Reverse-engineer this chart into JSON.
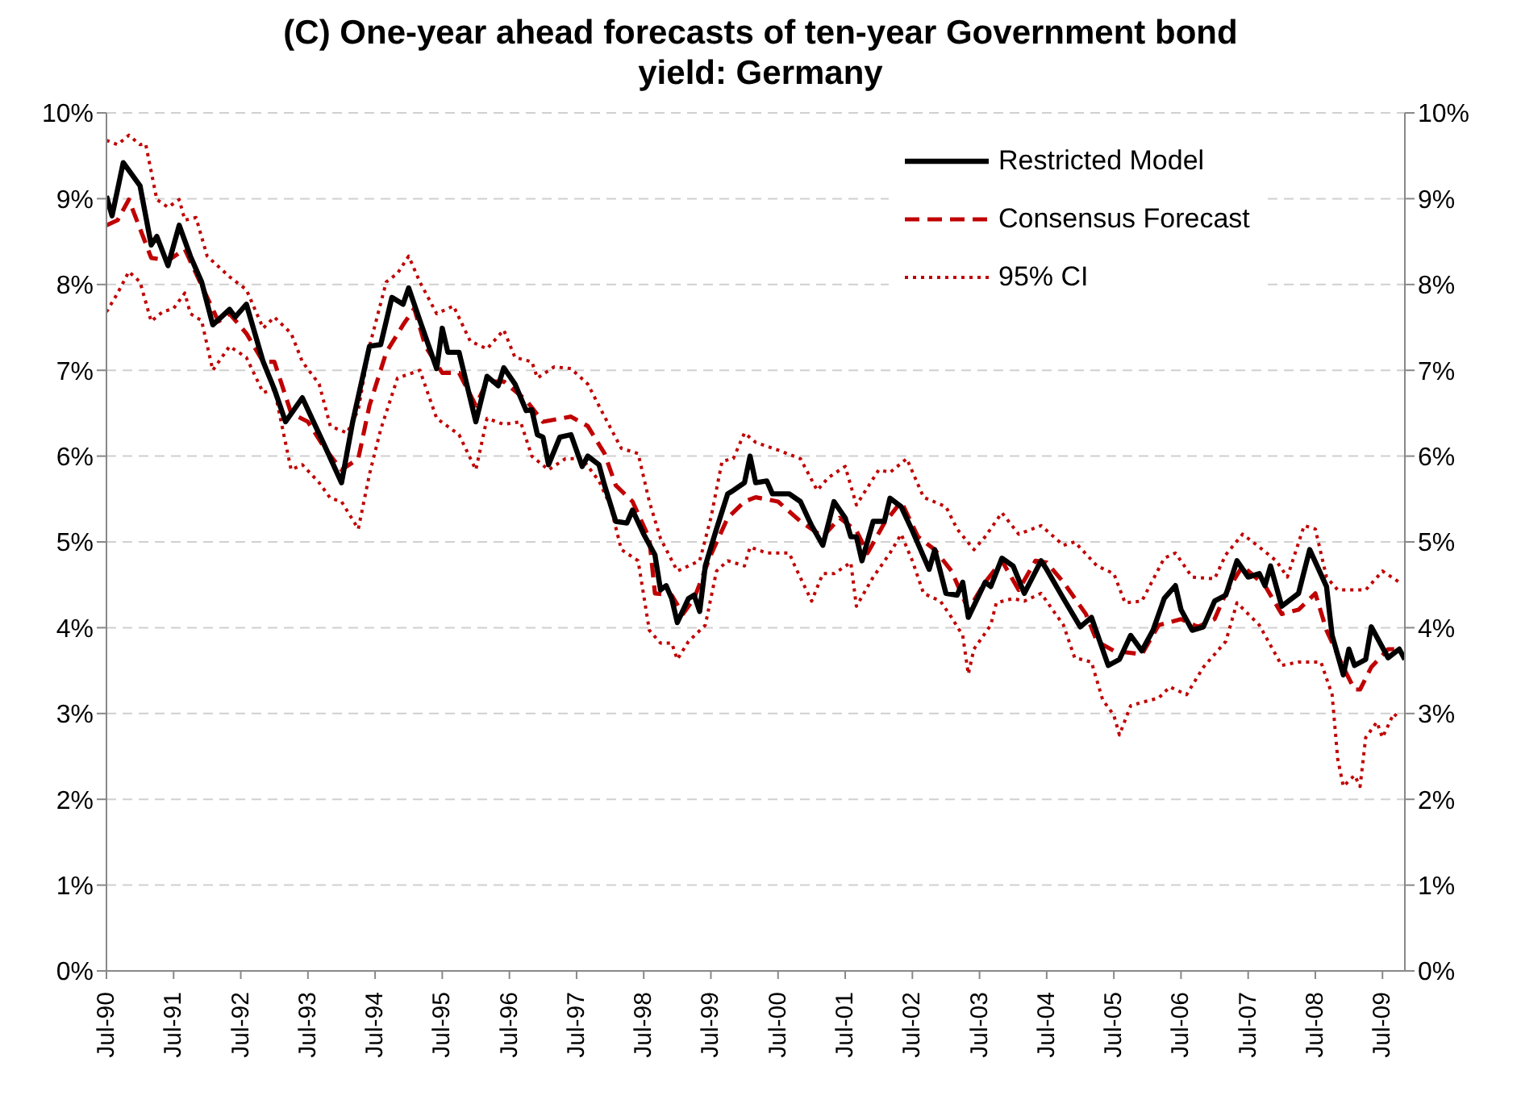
{
  "chart_data": {
    "type": "line",
    "title": "(C) One-year ahead forecasts of ten-year Government bond yield: Germany",
    "xlim": [
      "1990-07",
      "2009-11"
    ],
    "xticks": [
      {
        "value": "1990-07",
        "label": "Jul-90"
      },
      {
        "value": "1991-07",
        "label": "Jul-91"
      },
      {
        "value": "1992-07",
        "label": "Jul-92"
      },
      {
        "value": "1993-07",
        "label": "Jul-93"
      },
      {
        "value": "1994-07",
        "label": "Jul-94"
      },
      {
        "value": "1995-07",
        "label": "Jul-95"
      },
      {
        "value": "1996-07",
        "label": "Jul-96"
      },
      {
        "value": "1997-07",
        "label": "Jul-97"
      },
      {
        "value": "1998-07",
        "label": "Jul-98"
      },
      {
        "value": "1999-07",
        "label": "Jul-99"
      },
      {
        "value": "2000-07",
        "label": "Jul-00"
      },
      {
        "value": "2001-07",
        "label": "Jul-01"
      },
      {
        "value": "2002-07",
        "label": "Jul-02"
      },
      {
        "value": "2003-07",
        "label": "Jul-03"
      },
      {
        "value": "2004-07",
        "label": "Jul-04"
      },
      {
        "value": "2005-07",
        "label": "Jul-05"
      },
      {
        "value": "2006-07",
        "label": "Jul-06"
      },
      {
        "value": "2007-07",
        "label": "Jul-07"
      },
      {
        "value": "2008-07",
        "label": "Jul-08"
      },
      {
        "value": "2009-07",
        "label": "Jul-09"
      }
    ],
    "ylim": [
      0,
      10
    ],
    "yticks": [
      {
        "value": 0,
        "label": "0%"
      },
      {
        "value": 1,
        "label": "1%"
      },
      {
        "value": 2,
        "label": "2%"
      },
      {
        "value": 3,
        "label": "3%"
      },
      {
        "value": 4,
        "label": "4%"
      },
      {
        "value": 5,
        "label": "5%"
      },
      {
        "value": 6,
        "label": "6%"
      },
      {
        "value": 7,
        "label": "7%"
      },
      {
        "value": 8,
        "label": "8%"
      },
      {
        "value": 9,
        "label": "9%"
      },
      {
        "value": 10,
        "label": "10%"
      }
    ],
    "y2lim": [
      0,
      10
    ],
    "y2ticks": [
      {
        "value": 0,
        "label": "0%"
      },
      {
        "value": 1,
        "label": "1%"
      },
      {
        "value": 2,
        "label": "2%"
      },
      {
        "value": 3,
        "label": "3%"
      },
      {
        "value": 4,
        "label": "4%"
      },
      {
        "value": 5,
        "label": "5%"
      },
      {
        "value": 6,
        "label": "6%"
      },
      {
        "value": 7,
        "label": "7%"
      },
      {
        "value": 8,
        "label": "8%"
      },
      {
        "value": 9,
        "label": "9%"
      },
      {
        "value": 10,
        "label": "10%"
      }
    ],
    "grid": "y",
    "legend": "top right",
    "marker": "none",
    "series": [
      {
        "name": "Restricted Model",
        "color": "#000000",
        "line_style": "solid",
        "x": [
          "1990-07",
          "1990-08",
          "1990-10",
          "1991-01",
          "1991-03",
          "1991-04",
          "1991-06",
          "1991-08",
          "1991-10",
          "1991-12",
          "1992-02",
          "1992-05",
          "1992-06",
          "1992-08",
          "1992-11",
          "1993-01",
          "1993-03",
          "1993-06",
          "1993-08",
          "1993-10",
          "1994-01",
          "1994-03",
          "1994-06",
          "1994-08",
          "1994-10",
          "1994-12",
          "1995-01",
          "1995-03",
          "1995-06",
          "1995-07",
          "1995-08",
          "1995-10",
          "1996-01",
          "1996-03",
          "1996-05",
          "1996-06",
          "1996-08",
          "1996-10",
          "1996-11",
          "1996-12",
          "1997-01",
          "1997-02",
          "1997-04",
          "1997-06",
          "1997-08",
          "1997-09",
          "1997-11",
          "1997-12",
          "1998-02",
          "1998-04",
          "1998-05",
          "1998-07",
          "1998-09",
          "1998-10",
          "1998-11",
          "1998-12",
          "1999-01",
          "1999-03",
          "1999-04",
          "1999-05",
          "1999-06",
          "1999-08",
          "1999-10",
          "1999-11",
          "2000-01",
          "2000-02",
          "2000-03",
          "2000-05",
          "2000-06",
          "2000-09",
          "2000-11",
          "2001-01",
          "2001-03",
          "2001-05",
          "2001-07",
          "2001-08",
          "2001-09",
          "2001-10",
          "2001-12",
          "2002-02",
          "2002-03",
          "2002-05",
          "2002-07",
          "2002-10",
          "2002-11",
          "2003-01",
          "2003-03",
          "2003-04",
          "2003-05",
          "2003-08",
          "2003-09",
          "2003-11",
          "2004-01",
          "2004-03",
          "2004-06",
          "2004-07",
          "2004-10",
          "2005-01",
          "2005-03",
          "2005-06",
          "2005-08",
          "2005-10",
          "2005-12",
          "2006-02",
          "2006-04",
          "2006-06",
          "2006-07",
          "2006-09",
          "2006-11",
          "2007-01",
          "2007-03",
          "2007-05",
          "2007-07",
          "2007-09",
          "2007-10",
          "2007-11",
          "2008-01",
          "2008-04",
          "2008-06",
          "2008-09",
          "2008-10",
          "2008-12",
          "2009-01",
          "2009-02",
          "2009-04",
          "2009-05",
          "2009-08",
          "2009-10",
          "2009-11"
        ],
        "values": [
          9.03,
          8.8,
          9.42,
          9.15,
          8.46,
          8.56,
          8.22,
          8.69,
          8.33,
          8.03,
          7.53,
          7.71,
          7.62,
          7.77,
          7.1,
          6.78,
          6.4,
          6.68,
          6.4,
          6.12,
          5.69,
          6.4,
          7.28,
          7.3,
          7.85,
          7.77,
          7.96,
          7.58,
          7.02,
          7.49,
          7.21,
          7.21,
          6.4,
          6.93,
          6.82,
          7.03,
          6.84,
          6.53,
          6.54,
          6.25,
          6.22,
          5.9,
          6.22,
          6.25,
          5.88,
          6.0,
          5.9,
          5.66,
          5.24,
          5.22,
          5.37,
          5.09,
          4.85,
          4.44,
          4.49,
          4.34,
          4.06,
          4.34,
          4.38,
          4.19,
          4.72,
          5.15,
          5.56,
          5.6,
          5.69,
          6.0,
          5.69,
          5.71,
          5.56,
          5.56,
          5.47,
          5.19,
          4.96,
          5.47,
          5.28,
          5.06,
          5.06,
          4.78,
          5.24,
          5.24,
          5.51,
          5.41,
          5.13,
          4.68,
          4.91,
          4.4,
          4.38,
          4.53,
          4.12,
          4.53,
          4.48,
          4.81,
          4.72,
          4.4,
          4.78,
          4.68,
          4.34,
          4.01,
          4.12,
          3.56,
          3.63,
          3.91,
          3.73,
          3.97,
          4.34,
          4.49,
          4.21,
          3.97,
          4.01,
          4.31,
          4.38,
          4.78,
          4.59,
          4.63,
          4.49,
          4.72,
          4.25,
          4.4,
          4.91,
          4.48,
          3.91,
          3.45,
          3.75,
          3.56,
          3.63,
          4.01,
          3.65,
          3.75,
          3.63
        ]
      },
      {
        "name": "Consensus Forecast",
        "color": "#c00000",
        "line_style": "dashed",
        "x": [
          "1990-07",
          "1990-09",
          "1990-11",
          "1991-03",
          "1991-06",
          "1991-09",
          "1992-01",
          "1992-03",
          "1992-05",
          "1992-08",
          "1992-11",
          "1993-01",
          "1993-04",
          "1993-07",
          "1993-10",
          "1994-01",
          "1994-04",
          "1994-06",
          "1994-09",
          "1994-12",
          "1995-02",
          "1995-04",
          "1995-07",
          "1995-10",
          "1996-01",
          "1996-03",
          "1996-06",
          "1996-10",
          "1997-01",
          "1997-06",
          "1997-09",
          "1997-12",
          "1998-02",
          "1998-05",
          "1998-08",
          "1998-09",
          "1998-12",
          "1999-02",
          "1999-04",
          "1999-07",
          "1999-10",
          "2000-01",
          "2000-03",
          "2000-07",
          "2000-11",
          "2001-03",
          "2001-06",
          "2001-09",
          "2001-11",
          "2002-02",
          "2002-05",
          "2002-08",
          "2002-11",
          "2003-02",
          "2003-05",
          "2003-08",
          "2003-11",
          "2004-02",
          "2004-05",
          "2004-07",
          "2004-10",
          "2005-02",
          "2005-04",
          "2005-07",
          "2005-12",
          "2006-03",
          "2006-07",
          "2006-10",
          "2007-01",
          "2007-03",
          "2007-06",
          "2007-10",
          "2008-01",
          "2008-04",
          "2008-07",
          "2008-09",
          "2008-12",
          "2009-02",
          "2009-03",
          "2009-05",
          "2009-08",
          "2009-10"
        ],
        "values": [
          8.69,
          8.75,
          8.99,
          8.31,
          8.28,
          8.41,
          7.85,
          7.57,
          7.66,
          7.43,
          7.1,
          7.1,
          6.5,
          6.4,
          6.09,
          5.84,
          5.97,
          6.59,
          7.21,
          7.53,
          7.72,
          7.28,
          6.97,
          6.97,
          6.59,
          6.87,
          6.87,
          6.65,
          6.4,
          6.46,
          6.35,
          6.03,
          5.66,
          5.47,
          5.04,
          4.4,
          4.38,
          4.16,
          4.34,
          4.85,
          5.28,
          5.47,
          5.52,
          5.47,
          5.24,
          5.06,
          5.28,
          5.13,
          4.87,
          5.22,
          5.47,
          5.06,
          4.91,
          4.66,
          4.21,
          4.53,
          4.78,
          4.44,
          4.78,
          4.76,
          4.53,
          4.16,
          3.84,
          3.73,
          3.69,
          4.03,
          4.1,
          4.01,
          4.1,
          4.4,
          4.72,
          4.49,
          4.16,
          4.21,
          4.4,
          3.97,
          3.54,
          3.28,
          3.28,
          3.54,
          3.75,
          3.75
        ]
      },
      {
        "name": "95% CI",
        "color": "#c00000",
        "line_style": "dotted",
        "x": [
          "1990-07",
          "1990-09",
          "1990-11",
          "1991-01",
          "1991-02",
          "1991-04",
          "1991-06",
          "1991-08",
          "1991-09",
          "1991-11",
          "1992-01",
          "1992-05",
          "1992-08",
          "1992-11",
          "1993-01",
          "1993-04",
          "1993-06",
          "1993-09",
          "1993-11",
          "1994-02",
          "1994-04",
          "1994-06",
          "1994-09",
          "1994-11",
          "1995-01",
          "1995-03",
          "1995-06",
          "1995-09",
          "1995-12",
          "1996-03",
          "1996-06",
          "1996-08",
          "1996-11",
          "1996-12",
          "1997-03",
          "1997-06",
          "1997-09",
          "1997-12",
          "1998-03",
          "1998-06",
          "1998-08",
          "1998-10",
          "1999-01",
          "1999-05",
          "1999-07",
          "1999-09",
          "1999-11",
          "2000-01",
          "2000-03",
          "2000-07",
          "2000-11",
          "2001-02",
          "2001-04",
          "2001-07",
          "2001-09",
          "2002-01",
          "2002-03",
          "2002-06",
          "2002-09",
          "2003-01",
          "2003-03",
          "2003-06",
          "2003-08",
          "2003-11",
          "2004-02",
          "2004-06",
          "2004-10",
          "2004-12",
          "2005-04",
          "2005-07",
          "2005-09",
          "2005-12",
          "2006-04",
          "2006-06",
          "2006-09",
          "2007-01",
          "2007-03",
          "2007-06",
          "2007-09",
          "2007-12",
          "2008-02",
          "2008-05",
          "2008-07",
          "2008-09",
          "2008-11",
          "2009-02",
          "2009-04",
          "2009-07",
          "2009-10"
        ],
        "values": [
          9.68,
          9.63,
          9.74,
          9.63,
          9.64,
          8.99,
          8.9,
          8.99,
          8.75,
          8.78,
          8.33,
          8.09,
          7.94,
          7.49,
          7.62,
          7.43,
          7.1,
          6.84,
          6.35,
          6.27,
          6.54,
          7.28,
          8.03,
          8.13,
          8.33,
          8.03,
          7.66,
          7.75,
          7.34,
          7.25,
          7.47,
          7.15,
          7.1,
          6.91,
          7.04,
          7.02,
          6.84,
          6.46,
          6.09,
          6.03,
          5.47,
          5.04,
          4.66,
          4.78,
          5.28,
          5.94,
          5.97,
          6.27,
          6.16,
          6.07,
          5.97,
          5.6,
          5.75,
          5.88,
          5.43,
          5.84,
          5.81,
          5.97,
          5.52,
          5.41,
          5.15,
          4.91,
          5.06,
          5.34,
          5.09,
          5.19,
          4.96,
          5.0,
          4.72,
          4.63,
          4.29,
          4.31,
          4.81,
          4.87,
          4.59,
          4.57,
          4.85,
          5.09,
          4.94,
          4.78,
          4.59,
          5.19,
          5.15,
          4.59,
          4.44,
          4.44,
          4.44,
          4.66,
          4.53
        ]
      },
      {
        "color": "#c00000",
        "line_style": "dotted",
        "x": [
          "1990-07",
          "1990-09",
          "1990-11",
          "1991-01",
          "1991-03",
          "1991-05",
          "1991-07",
          "1991-09",
          "1991-10",
          "1991-12",
          "1992-02",
          "1992-05",
          "1992-08",
          "1992-11",
          "1993-01",
          "1993-04",
          "1993-06",
          "1993-09",
          "1993-11",
          "1994-01",
          "1994-04",
          "1994-06",
          "1994-08",
          "1994-11",
          "1995-03",
          "1995-06",
          "1995-10",
          "1996-01",
          "1996-03",
          "1996-06",
          "1996-09",
          "1996-11",
          "1997-02",
          "1997-05",
          "1997-08",
          "1997-11",
          "1998-01",
          "1998-03",
          "1998-06",
          "1998-08",
          "1998-10",
          "1998-12",
          "1999-01",
          "1999-03",
          "1999-06",
          "1999-08",
          "1999-10",
          "2000-01",
          "2000-02",
          "2000-05",
          "2000-09",
          "2000-10",
          "2001-01",
          "2001-03",
          "2001-05",
          "2001-08",
          "2001-09",
          "2001-12",
          "2002-03",
          "2002-05",
          "2002-07",
          "2002-09",
          "2002-12",
          "2003-02",
          "2003-04",
          "2003-05",
          "2003-06",
          "2003-09",
          "2003-10",
          "2004-01",
          "2004-03",
          "2004-06",
          "2004-10",
          "2004-12",
          "2005-03",
          "2005-05",
          "2005-07",
          "2005-08",
          "2005-10",
          "2005-12",
          "2006-03",
          "2006-05",
          "2006-08",
          "2006-11",
          "2007-03",
          "2007-05",
          "2007-09",
          "2008-01",
          "2008-04",
          "2008-08",
          "2008-10",
          "2008-11",
          "2008-12",
          "2009-02",
          "2009-03",
          "2009-04",
          "2009-06",
          "2009-07",
          "2009-09",
          "2009-10"
        ],
        "values": [
          7.68,
          7.9,
          8.15,
          8.03,
          7.57,
          7.68,
          7.72,
          7.9,
          7.66,
          7.58,
          7.0,
          7.28,
          7.15,
          6.74,
          6.78,
          5.84,
          5.9,
          5.69,
          5.51,
          5.47,
          5.15,
          5.79,
          6.31,
          6.91,
          7.0,
          6.44,
          6.25,
          5.84,
          6.44,
          6.37,
          6.4,
          6.0,
          5.84,
          5.97,
          5.97,
          5.71,
          5.43,
          4.91,
          4.78,
          3.97,
          3.82,
          3.82,
          3.63,
          3.84,
          4.03,
          4.66,
          4.78,
          4.72,
          4.94,
          4.87,
          4.87,
          4.72,
          4.31,
          4.63,
          4.63,
          4.76,
          4.25,
          4.59,
          4.87,
          5.09,
          4.78,
          4.4,
          4.31,
          4.12,
          3.91,
          3.46,
          3.75,
          4.03,
          4.29,
          4.34,
          4.31,
          4.4,
          4.03,
          3.65,
          3.6,
          3.16,
          2.98,
          2.75,
          3.09,
          3.13,
          3.18,
          3.31,
          3.22,
          3.54,
          3.84,
          4.29,
          4.03,
          3.56,
          3.6,
          3.6,
          3.22,
          2.47,
          2.15,
          2.28,
          2.15,
          2.72,
          2.9,
          2.72,
          3.0,
          2.94
        ]
      }
    ]
  }
}
